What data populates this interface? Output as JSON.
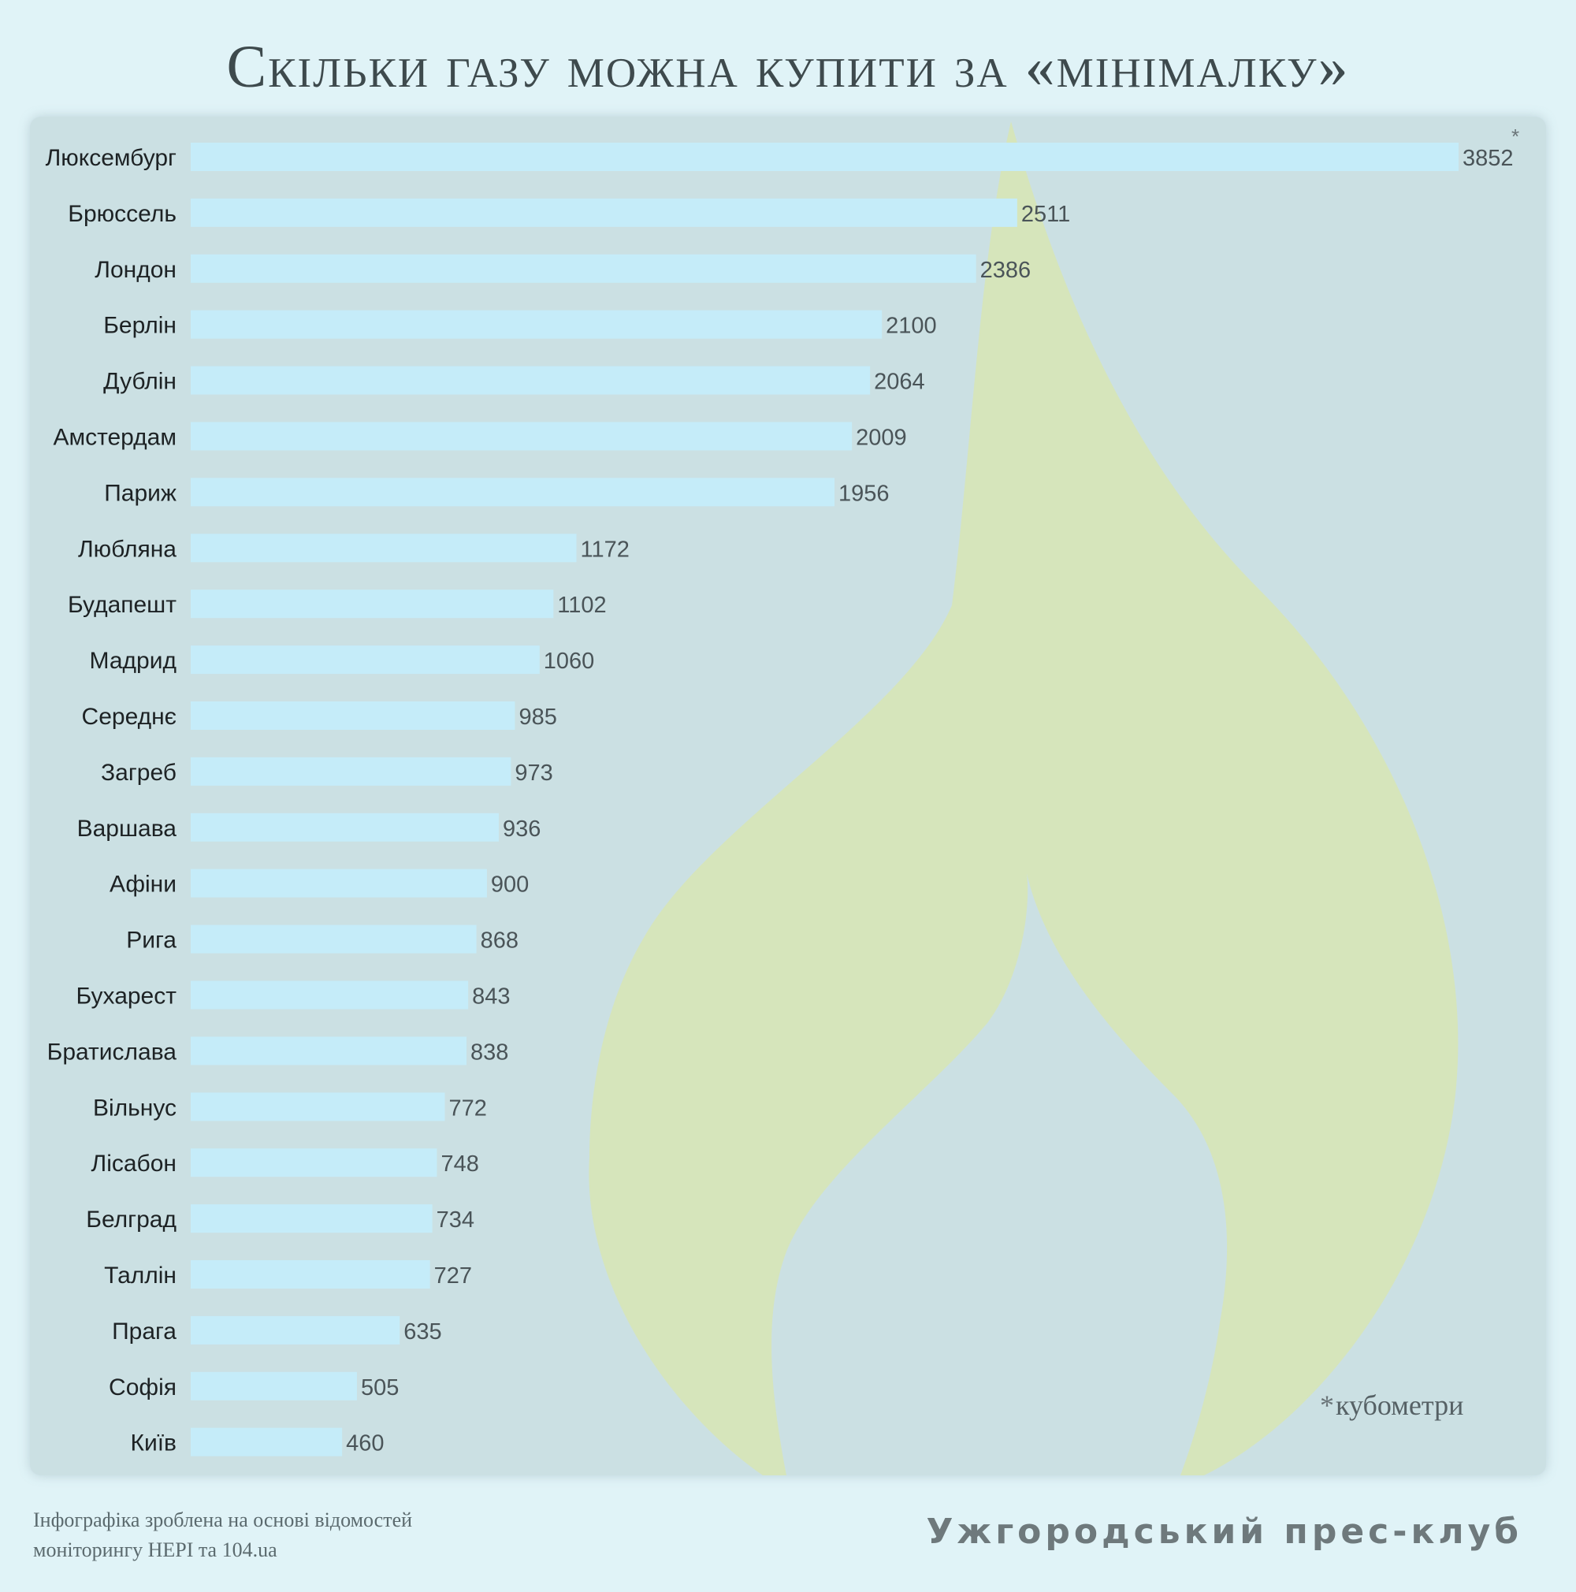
{
  "title": "Скільки газу можна купити за «мінімалку»",
  "unit_star": "*",
  "unit_label": "кубометри",
  "source_lines": [
    "Інфографіка зроблена на основі відомостей",
    "моніторингу НЕРІ та 104.ua"
  ],
  "brand": "Ужгородський прес-клуб",
  "colors": {
    "bar": "#c5ecf9",
    "panel": "#cbe0e3",
    "flame": "#d6e5bb",
    "background": "#e0f3f7"
  },
  "chart_data": {
    "type": "bar",
    "orientation": "horizontal",
    "categories": [
      "Люксембург",
      "Брюссель",
      "Лондон",
      "Берлін",
      "Дублін",
      "Амстердам",
      "Париж",
      "Любляна",
      "Будапешт",
      "Мадрид",
      "Середнє",
      "Загреб",
      "Варшава",
      "Афіни",
      "Рига",
      "Бухарест",
      "Братислава",
      "Вільнус",
      "Лісабон",
      "Белград",
      "Таллін",
      "Прага",
      "Софія",
      "Київ"
    ],
    "values": [
      3852,
      2511,
      2386,
      2100,
      2064,
      2009,
      1956,
      1172,
      1102,
      1060,
      985,
      973,
      936,
      900,
      868,
      843,
      838,
      772,
      748,
      734,
      727,
      635,
      505,
      460
    ],
    "xlim": [
      0,
      3852
    ],
    "grid": false,
    "legend": "none",
    "data_labels": true
  }
}
